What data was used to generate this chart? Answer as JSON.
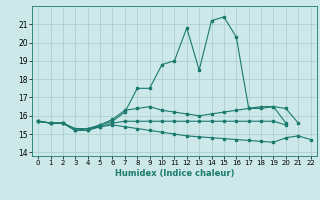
{
  "xlabel": "Humidex (Indice chaleur)",
  "background_color": "#cce8e8",
  "grid_color": "#aacccc",
  "line_color": "#1a7a6e",
  "xlim": [
    -0.5,
    22.5
  ],
  "ylim": [
    13.8,
    22.0
  ],
  "yticks": [
    14,
    15,
    16,
    17,
    18,
    19,
    20,
    21
  ],
  "xticks": [
    0,
    1,
    2,
    3,
    4,
    5,
    6,
    7,
    8,
    9,
    10,
    11,
    12,
    13,
    14,
    15,
    16,
    17,
    18,
    19,
    20,
    21,
    22
  ],
  "series": [
    [
      15.7,
      15.6,
      15.6,
      15.2,
      15.2,
      15.5,
      15.7,
      16.2,
      17.5,
      17.5,
      18.8,
      19.0,
      20.8,
      18.5,
      21.2,
      21.4,
      20.3,
      16.4,
      16.5,
      16.5,
      16.4,
      15.6,
      null
    ],
    [
      15.7,
      15.6,
      15.6,
      15.2,
      15.3,
      15.5,
      15.8,
      16.3,
      16.4,
      16.5,
      16.3,
      16.2,
      16.1,
      16.0,
      16.1,
      16.2,
      16.3,
      16.4,
      16.4,
      16.5,
      15.6,
      null,
      null
    ],
    [
      15.7,
      15.6,
      15.6,
      15.3,
      15.3,
      15.4,
      15.5,
      15.4,
      15.3,
      15.2,
      15.1,
      15.0,
      14.9,
      14.85,
      14.8,
      14.75,
      14.7,
      14.65,
      14.6,
      14.55,
      14.8,
      14.9,
      14.7
    ],
    [
      15.7,
      15.6,
      15.6,
      15.2,
      15.2,
      15.4,
      15.6,
      15.7,
      15.7,
      15.7,
      15.7,
      15.7,
      15.7,
      15.7,
      15.7,
      15.7,
      15.7,
      15.7,
      15.7,
      15.7,
      15.5,
      null,
      null
    ]
  ]
}
